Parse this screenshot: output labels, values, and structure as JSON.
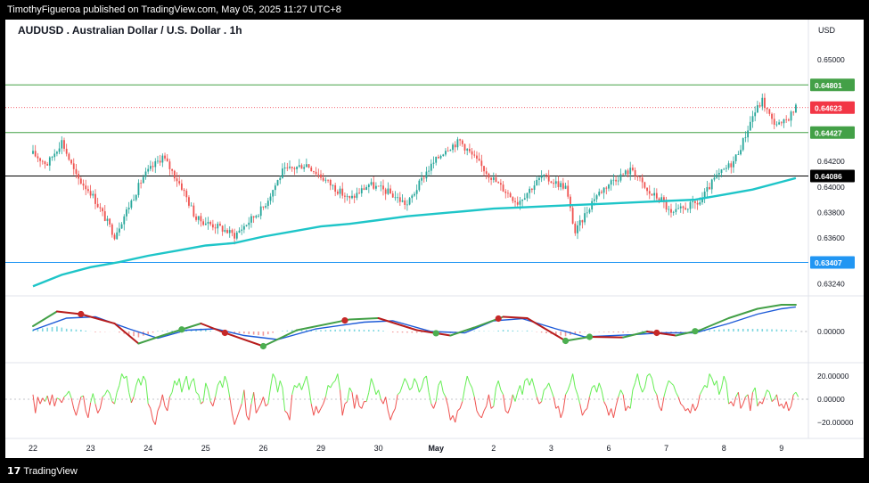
{
  "header": {
    "publisher_line": "TimothyFigueroa published on TradingView.com, May 05, 2025 11:27 UTC+8"
  },
  "footer": {
    "brand": "TradingView",
    "brand_glyph": "17"
  },
  "chart_data": [
    {
      "type": "candlestick",
      "title": "AUDUSD . Australian Dollar / U.S. Dollar . 1h",
      "currency": "USD",
      "ylim": [
        0.6318,
        0.6516
      ],
      "ticks": [
        {
          "value": 0.65,
          "label": "0.65000"
        },
        {
          "value": 0.642,
          "label": "0.64200"
        },
        {
          "value": 0.64,
          "label": "0.64000"
        },
        {
          "value": 0.638,
          "label": "0.63800"
        },
        {
          "value": 0.636,
          "label": "0.63600"
        },
        {
          "value": 0.6324,
          "label": "0.63240"
        }
      ],
      "levels": [
        {
          "value": 0.64801,
          "label": "0.64801",
          "color": "#43a047",
          "style": "solid"
        },
        {
          "value": 0.64623,
          "label": "0.64623",
          "color": "#f23645",
          "style": "dotted"
        },
        {
          "value": 0.64427,
          "label": "0.64427",
          "color": "#43a047",
          "style": "solid"
        },
        {
          "value": 0.64086,
          "label": "0.64086",
          "color": "#000000",
          "style": "solid"
        },
        {
          "value": 0.63407,
          "label": "0.63407",
          "color": "#2196f3",
          "style": "solid"
        }
      ],
      "x_labels": [
        {
          "day": 0,
          "label": "22"
        },
        {
          "day": 1,
          "label": "23"
        },
        {
          "day": 2,
          "label": "24"
        },
        {
          "day": 3,
          "label": "25"
        },
        {
          "day": 4,
          "label": "26"
        },
        {
          "day": 5,
          "label": "29"
        },
        {
          "day": 6,
          "label": "30"
        },
        {
          "day": 7,
          "label": "May"
        },
        {
          "day": 8,
          "label": "2"
        },
        {
          "day": 9,
          "label": "3"
        },
        {
          "day": 10,
          "label": "6"
        },
        {
          "day": 11,
          "label": "7"
        },
        {
          "day": 12,
          "label": "8"
        },
        {
          "day": 13,
          "label": "9"
        }
      ],
      "bars_per_day": 24,
      "up_color": "#26a69a",
      "down_color": "#ef5350",
      "ma_color": "#1ec5c8",
      "price_path": [
        [
          0,
          0.6426
        ],
        [
          6,
          0.6418
        ],
        [
          12,
          0.6436
        ],
        [
          18,
          0.6408
        ],
        [
          24,
          0.6396
        ],
        [
          34,
          0.6362
        ],
        [
          46,
          0.6408
        ],
        [
          54,
          0.6424
        ],
        [
          62,
          0.64
        ],
        [
          68,
          0.6375
        ],
        [
          78,
          0.6368
        ],
        [
          84,
          0.6362
        ],
        [
          96,
          0.6384
        ],
        [
          104,
          0.6412
        ],
        [
          114,
          0.6418
        ],
        [
          124,
          0.6402
        ],
        [
          132,
          0.639
        ],
        [
          140,
          0.6402
        ],
        [
          148,
          0.6396
        ],
        [
          156,
          0.6386
        ],
        [
          164,
          0.6412
        ],
        [
          172,
          0.643
        ],
        [
          178,
          0.6436
        ],
        [
          186,
          0.6418
        ],
        [
          194,
          0.6402
        ],
        [
          202,
          0.6388
        ],
        [
          212,
          0.6408
        ],
        [
          222,
          0.64
        ],
        [
          226,
          0.6364
        ],
        [
          234,
          0.6392
        ],
        [
          242,
          0.6406
        ],
        [
          250,
          0.6414
        ],
        [
          256,
          0.6396
        ],
        [
          262,
          0.639
        ],
        [
          266,
          0.6378
        ],
        [
          272,
          0.6384
        ],
        [
          278,
          0.6388
        ],
        [
          284,
          0.6406
        ],
        [
          292,
          0.642
        ],
        [
          296,
          0.6436
        ],
        [
          300,
          0.6456
        ],
        [
          304,
          0.6468
        ],
        [
          308,
          0.6452
        ],
        [
          312,
          0.6448
        ],
        [
          318,
          0.6462
        ]
      ],
      "ma_path": [
        [
          0,
          0.6322
        ],
        [
          12,
          0.6331
        ],
        [
          24,
          0.6337
        ],
        [
          36,
          0.6341
        ],
        [
          48,
          0.6346
        ],
        [
          60,
          0.635
        ],
        [
          72,
          0.6354
        ],
        [
          84,
          0.6356
        ],
        [
          96,
          0.6361
        ],
        [
          108,
          0.6365
        ],
        [
          120,
          0.6369
        ],
        [
          132,
          0.6371
        ],
        [
          144,
          0.6374
        ],
        [
          156,
          0.6377
        ],
        [
          168,
          0.6379
        ],
        [
          180,
          0.6381
        ],
        [
          192,
          0.6383
        ],
        [
          204,
          0.6384
        ],
        [
          216,
          0.6385
        ],
        [
          228,
          0.6386
        ],
        [
          240,
          0.6387
        ],
        [
          252,
          0.6388
        ],
        [
          264,
          0.6389
        ],
        [
          276,
          0.639
        ],
        [
          288,
          0.6394
        ],
        [
          300,
          0.6398
        ],
        [
          312,
          0.6404
        ],
        [
          318,
          0.6407
        ]
      ]
    },
    {
      "type": "line",
      "name": "oscillator",
      "ylim": [
        -1,
        1
      ],
      "ticks": [
        {
          "value": 0,
          "label": "0.00000"
        }
      ],
      "fast_color": "#43a047",
      "fast_down_color": "#b71c1c",
      "slow_color": "#1e5bd8",
      "cross_up_color": "#4caf50",
      "cross_down_color": "#c62828",
      "fast_path": [
        [
          0,
          0.2
        ],
        [
          10,
          0.75
        ],
        [
          20,
          0.65
        ],
        [
          34,
          0.3
        ],
        [
          44,
          -0.45
        ],
        [
          54,
          -0.15
        ],
        [
          70,
          0.3
        ],
        [
          80,
          -0.05
        ],
        [
          96,
          -0.55
        ],
        [
          110,
          0.05
        ],
        [
          132,
          0.45
        ],
        [
          144,
          0.5
        ],
        [
          160,
          0.05
        ],
        [
          174,
          -0.15
        ],
        [
          184,
          0.15
        ],
        [
          196,
          0.55
        ],
        [
          206,
          0.5
        ],
        [
          222,
          -0.35
        ],
        [
          232,
          -0.2
        ],
        [
          246,
          -0.22
        ],
        [
          256,
          0.0
        ],
        [
          268,
          -0.15
        ],
        [
          278,
          0.05
        ],
        [
          290,
          0.5
        ],
        [
          302,
          0.85
        ],
        [
          312,
          1.0
        ],
        [
          318,
          1.0
        ]
      ],
      "slow_path": [
        [
          0,
          0.05
        ],
        [
          14,
          0.5
        ],
        [
          26,
          0.55
        ],
        [
          40,
          0.1
        ],
        [
          52,
          -0.25
        ],
        [
          64,
          0.05
        ],
        [
          76,
          0.1
        ],
        [
          88,
          -0.15
        ],
        [
          102,
          -0.3
        ],
        [
          118,
          0.1
        ],
        [
          138,
          0.35
        ],
        [
          150,
          0.4
        ],
        [
          166,
          0.0
        ],
        [
          180,
          -0.05
        ],
        [
          192,
          0.4
        ],
        [
          204,
          0.48
        ],
        [
          218,
          0.1
        ],
        [
          230,
          -0.2
        ],
        [
          250,
          -0.12
        ],
        [
          262,
          -0.05
        ],
        [
          276,
          -0.05
        ],
        [
          290,
          0.3
        ],
        [
          302,
          0.65
        ],
        [
          312,
          0.85
        ],
        [
          318,
          0.92
        ]
      ],
      "crosses": [
        {
          "x": 20,
          "dir": "down"
        },
        {
          "x": 62,
          "dir": "up"
        },
        {
          "x": 80,
          "dir": "down"
        },
        {
          "x": 96,
          "dir": "up"
        },
        {
          "x": 130,
          "dir": "down"
        },
        {
          "x": 168,
          "dir": "up"
        },
        {
          "x": 194,
          "dir": "down"
        },
        {
          "x": 222,
          "dir": "up"
        },
        {
          "x": 232,
          "dir": "up"
        },
        {
          "x": 260,
          "dir": "down"
        },
        {
          "x": 276,
          "dir": "up"
        }
      ]
    },
    {
      "type": "line",
      "name": "momentum",
      "ylim": [
        -30,
        30
      ],
      "ticks": [
        {
          "value": 20,
          "label": "20.00000"
        },
        {
          "value": 0,
          "label": "0.00000"
        },
        {
          "value": -20,
          "label": "−20.00000"
        }
      ],
      "up_color": "#66ee55",
      "down_color": "#ef5350",
      "values": [
        4,
        -12,
        2,
        -4,
        1,
        -2,
        3,
        -5,
        4,
        -6,
        1,
        0,
        -3,
        2,
        4,
        7,
        1,
        -8,
        -14,
        -6,
        2,
        3,
        -10,
        -16,
        -3,
        5,
        -4,
        -12,
        -8,
        2,
        4,
        8,
        5,
        -2,
        -4,
        6,
        12,
        22,
        18,
        20,
        6,
        -3,
        2,
        12,
        18,
        12,
        20,
        16,
        -4,
        -8,
        -18,
        -22,
        -10,
        -5,
        4,
        -6,
        -10,
        2,
        6,
        16,
        12,
        18,
        6,
        14,
        20,
        8,
        15,
        18,
        6,
        4,
        -4,
        -2,
        14,
        8,
        -2,
        -6,
        2,
        12,
        16,
        10,
        20,
        14,
        2,
        -12,
        -22,
        -16,
        -10,
        -4,
        8,
        -14,
        -18,
        -4,
        6,
        -12,
        -8,
        -4,
        2,
        -6,
        -4,
        10,
        22,
        18,
        6,
        16,
        10,
        -10,
        -12,
        -18,
        4,
        12,
        10,
        14,
        8,
        14,
        20,
        10,
        -4,
        -14,
        -6,
        -12,
        -8,
        -4,
        2,
        12,
        10,
        14,
        16,
        22,
        8,
        -14,
        -4,
        -2,
        10,
        6,
        -8,
        4,
        -6,
        -8,
        -2,
        -2,
        6,
        18,
        12,
        4,
        8,
        0,
        -4,
        2,
        -10,
        -18,
        -12,
        -8,
        4,
        6,
        12,
        18,
        14,
        8,
        10,
        18,
        14,
        6,
        10,
        18,
        20,
        6,
        -4,
        -8,
        -2,
        12,
        16,
        6,
        2,
        -6,
        -18,
        -14,
        -20,
        -10,
        -8,
        -2,
        10,
        20,
        14,
        10,
        2,
        -10,
        -14,
        -16,
        -10,
        -6,
        4,
        -8,
        -6,
        10,
        16,
        8,
        4,
        -10,
        -12,
        -6,
        4,
        -2,
        6,
        12,
        4,
        16,
        18,
        12,
        18,
        10,
        2,
        -4,
        -2,
        8,
        10,
        14,
        8,
        2,
        -8,
        -6,
        -16,
        -10,
        4,
        8,
        14,
        22,
        10,
        4,
        -4,
        -14,
        -10,
        -8,
        2,
        10,
        12,
        6,
        14,
        8,
        -2,
        -6,
        -14,
        -8,
        -16,
        -6,
        2,
        8,
        4,
        -10,
        -6,
        -8,
        8,
        14,
        22,
        12,
        6,
        10,
        20,
        22,
        18,
        8,
        4,
        -6,
        -10,
        2,
        10,
        16,
        14,
        12,
        6,
        2,
        -4,
        -6,
        -10,
        -8,
        -12,
        -4,
        -10,
        -6,
        4,
        8,
        12,
        10,
        22,
        18,
        12,
        16,
        4,
        10,
        20,
        14,
        -4,
        -2,
        -6,
        2,
        6,
        -8,
        -4,
        2,
        4,
        -10,
        6,
        10,
        -6,
        -2,
        -4,
        2,
        8,
        6,
        -2,
        0,
        4,
        -6,
        -4,
        -8,
        -2,
        -10,
        -6,
        4,
        6,
        2
      ]
    }
  ]
}
